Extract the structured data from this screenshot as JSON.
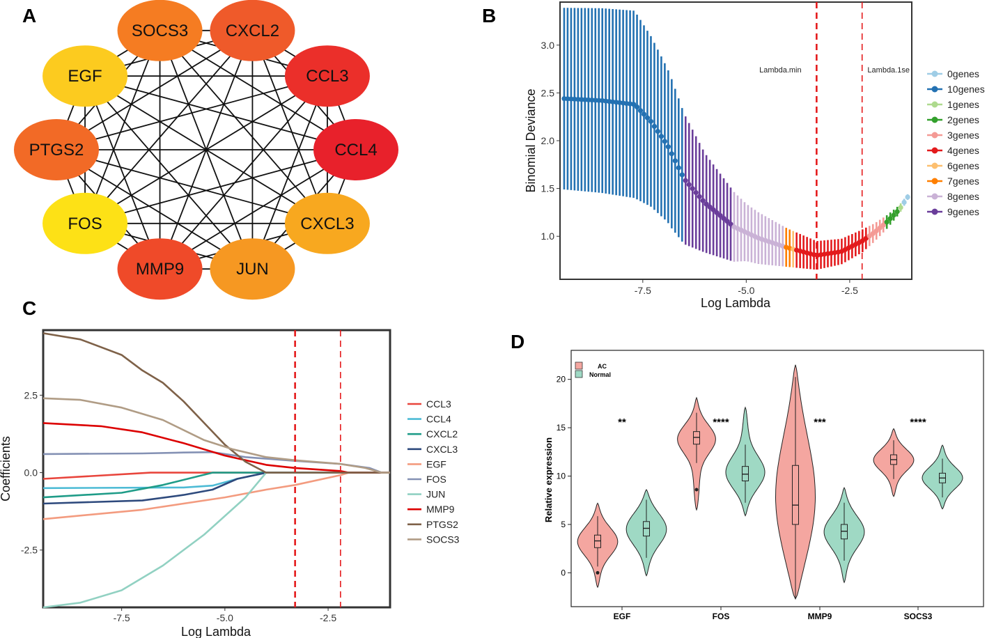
{
  "panels": {
    "a": "A",
    "b": "B",
    "c": "C",
    "d": "D"
  },
  "chart_data": [
    {
      "panel": "A",
      "type": "network",
      "nodes": [
        {
          "label": "SOCS3",
          "color": "#F57C22"
        },
        {
          "label": "CXCL2",
          "color": "#EF5A2A"
        },
        {
          "label": "CCL3",
          "color": "#EB2F2A"
        },
        {
          "label": "CCL4",
          "color": "#E8212B"
        },
        {
          "label": "CXCL3",
          "color": "#F8A81F"
        },
        {
          "label": "JUN",
          "color": "#F69822"
        },
        {
          "label": "MMP9",
          "color": "#EF4A29"
        },
        {
          "label": "FOS",
          "color": "#FDE116"
        },
        {
          "label": "PTGS2",
          "color": "#F26A26"
        },
        {
          "label": "EGF",
          "color": "#FCCB1F"
        }
      ]
    },
    {
      "panel": "B",
      "type": "scatter",
      "xlabel": "Log Lambda",
      "ylabel": "Binomial Deviance",
      "xlim": [
        -9.5,
        -1.0
      ],
      "ylim": [
        0.55,
        3.45
      ],
      "xticks": [
        -7.5,
        -5.0,
        -2.5
      ],
      "xtick_labels": [
        "-7.5",
        "-5.0",
        "-2.5"
      ],
      "yticks": [
        1.0,
        1.5,
        2.0,
        2.5,
        3.0
      ],
      "ytick_labels": [
        "1.0",
        "1.5",
        "2.0",
        "2.5",
        "3.0"
      ],
      "vlines": [
        {
          "x": -3.3,
          "label": "Lambda.min"
        },
        {
          "x": -2.2,
          "label": "Lambda.1se"
        }
      ],
      "legend": [
        {
          "label": "0genes",
          "color": "#9FCDE6"
        },
        {
          "label": "10genes",
          "color": "#2371B2"
        },
        {
          "label": "1genes",
          "color": "#AEDA8E"
        },
        {
          "label": "2genes",
          "color": "#33A02C"
        },
        {
          "label": "3genes",
          "color": "#F49A95"
        },
        {
          "label": "4genes",
          "color": "#E31A1C"
        },
        {
          "label": "6genes",
          "color": "#FDBF6F"
        },
        {
          "label": "7genes",
          "color": "#FF7F00"
        },
        {
          "label": "8genes",
          "color": "#CAB2D6"
        },
        {
          "label": "9genes",
          "color": "#6A3D9A"
        }
      ],
      "curve_points": [
        [
          -9.4,
          2.44
        ],
        [
          -8.5,
          2.42
        ],
        [
          -7.7,
          2.38
        ],
        [
          -7.3,
          2.2
        ],
        [
          -6.9,
          1.95
        ],
        [
          -6.5,
          1.6
        ],
        [
          -6.0,
          1.35
        ],
        [
          -5.3,
          1.1
        ],
        [
          -4.7,
          0.98
        ],
        [
          -4.0,
          0.88
        ],
        [
          -3.3,
          0.8
        ],
        [
          -2.7,
          0.84
        ],
        [
          -2.2,
          0.95
        ],
        [
          -1.9,
          1.04
        ],
        [
          -1.6,
          1.15
        ],
        [
          -1.3,
          1.28
        ],
        [
          -1.1,
          1.41
        ]
      ],
      "segments": [
        {
          "from": -9.4,
          "to": -6.5,
          "color": "#2371B2"
        },
        {
          "from": -6.5,
          "to": -5.3,
          "color": "#6A3D9A"
        },
        {
          "from": -5.3,
          "to": -4.1,
          "color": "#CAB2D6"
        },
        {
          "from": -4.1,
          "to": -3.95,
          "color": "#FF7F00"
        },
        {
          "from": -3.95,
          "to": -3.85,
          "color": "#FDBF6F"
        },
        {
          "from": -3.85,
          "to": -2.1,
          "color": "#E31A1C"
        },
        {
          "from": -2.1,
          "to": -1.65,
          "color": "#F49A95"
        },
        {
          "from": -1.65,
          "to": -1.35,
          "color": "#33A02C"
        },
        {
          "from": -1.35,
          "to": -1.2,
          "color": "#AEDA8E"
        },
        {
          "from": -1.2,
          "to": -1.1,
          "color": "#9FCDE6"
        }
      ],
      "error_halfwidth_points": [
        [
          -9.4,
          0.95
        ],
        [
          -7.7,
          0.98
        ],
        [
          -6.8,
          0.78
        ],
        [
          -6.0,
          0.52
        ],
        [
          -5.0,
          0.3
        ],
        [
          -4.0,
          0.2
        ],
        [
          -3.3,
          0.15
        ],
        [
          -2.2,
          0.12
        ],
        [
          -1.1,
          0.03
        ]
      ]
    },
    {
      "panel": "C",
      "type": "line",
      "xlabel": "Log Lambda",
      "ylabel": "Coefficients",
      "xlim": [
        -9.4,
        -1.0
      ],
      "ylim": [
        -4.35,
        4.6
      ],
      "xticks": [
        -7.5,
        -5.0,
        -2.5
      ],
      "xtick_labels": [
        "-7.5",
        "-5.0",
        "-2.5"
      ],
      "yticks": [
        -2.5,
        0.0,
        2.5
      ],
      "ytick_labels": [
        "-2.5",
        "0.0",
        "2.5"
      ],
      "vlines": [
        -3.3,
        -2.2
      ],
      "series": [
        {
          "name": "CCL3",
          "color": "#E8453C",
          "points": [
            [
              -9.4,
              -0.2
            ],
            [
              -6.8,
              0.0
            ],
            [
              -1.0,
              0.0
            ]
          ]
        },
        {
          "name": "CCL4",
          "color": "#4DBBD5",
          "points": [
            [
              -9.4,
              -0.5
            ],
            [
              -6.0,
              -0.48
            ],
            [
              -5.3,
              -0.42
            ],
            [
              -4.7,
              -0.2
            ],
            [
              -4.0,
              0.0
            ],
            [
              -1.0,
              0.0
            ]
          ]
        },
        {
          "name": "CXCL2",
          "color": "#1F9C88",
          "points": [
            [
              -9.4,
              -0.8
            ],
            [
              -7.5,
              -0.65
            ],
            [
              -6.5,
              -0.4
            ],
            [
              -5.3,
              0.0
            ],
            [
              -1.0,
              0.0
            ]
          ]
        },
        {
          "name": "CXCL3",
          "color": "#2E4A7D",
          "points": [
            [
              -9.4,
              -1.0
            ],
            [
              -7.0,
              -0.9
            ],
            [
              -6.0,
              -0.72
            ],
            [
              -5.3,
              -0.55
            ],
            [
              -4.7,
              -0.2
            ],
            [
              -4.0,
              0.0
            ],
            [
              -1.0,
              0.0
            ]
          ]
        },
        {
          "name": "EGF",
          "color": "#F39B7F",
          "points": [
            [
              -9.4,
              -1.5
            ],
            [
              -7.0,
              -1.2
            ],
            [
              -5.0,
              -0.8
            ],
            [
              -4.0,
              -0.55
            ],
            [
              -3.3,
              -0.4
            ],
            [
              -2.2,
              -0.08
            ],
            [
              -2.0,
              0.0
            ],
            [
              -1.0,
              0.0
            ]
          ]
        },
        {
          "name": "FOS",
          "color": "#8491B4",
          "points": [
            [
              -9.4,
              0.6
            ],
            [
              -7.0,
              0.62
            ],
            [
              -6.0,
              0.65
            ],
            [
              -5.3,
              0.66
            ],
            [
              -4.5,
              0.5
            ],
            [
              -3.3,
              0.38
            ],
            [
              -2.2,
              0.28
            ],
            [
              -1.5,
              0.15
            ],
            [
              -1.2,
              0.0
            ],
            [
              -1.0,
              0.0
            ]
          ]
        },
        {
          "name": "JUN",
          "color": "#91D1C2",
          "points": [
            [
              -9.4,
              -4.35
            ],
            [
              -8.5,
              -4.2
            ],
            [
              -7.5,
              -3.8
            ],
            [
              -6.5,
              -3.0
            ],
            [
              -5.5,
              -2.0
            ],
            [
              -4.5,
              -0.8
            ],
            [
              -4.0,
              0.0
            ],
            [
              -1.0,
              0.0
            ]
          ]
        },
        {
          "name": "MMP9",
          "color": "#DC0000",
          "points": [
            [
              -9.4,
              1.6
            ],
            [
              -8.0,
              1.5
            ],
            [
              -7.0,
              1.3
            ],
            [
              -6.0,
              0.95
            ],
            [
              -5.0,
              0.55
            ],
            [
              -4.0,
              0.25
            ],
            [
              -3.3,
              0.15
            ],
            [
              -2.2,
              0.05
            ],
            [
              -2.0,
              0.0
            ],
            [
              -1.0,
              0.0
            ]
          ]
        },
        {
          "name": "PTGS2",
          "color": "#7E6148",
          "points": [
            [
              -9.4,
              4.5
            ],
            [
              -8.5,
              4.3
            ],
            [
              -7.5,
              3.8
            ],
            [
              -7.0,
              3.3
            ],
            [
              -6.5,
              2.9
            ],
            [
              -6.0,
              2.3
            ],
            [
              -5.5,
              1.6
            ],
            [
              -5.0,
              0.9
            ],
            [
              -4.5,
              0.35
            ],
            [
              -4.0,
              0.0
            ],
            [
              -1.0,
              0.0
            ]
          ]
        },
        {
          "name": "SOCS3",
          "color": "#B09C85",
          "points": [
            [
              -9.4,
              2.4
            ],
            [
              -8.5,
              2.35
            ],
            [
              -7.5,
              2.1
            ],
            [
              -6.5,
              1.7
            ],
            [
              -5.5,
              1.05
            ],
            [
              -4.8,
              0.75
            ],
            [
              -4.0,
              0.5
            ],
            [
              -3.3,
              0.4
            ],
            [
              -2.2,
              0.28
            ],
            [
              -1.6,
              0.15
            ],
            [
              -1.2,
              0.0
            ],
            [
              -1.0,
              0.0
            ]
          ]
        }
      ]
    },
    {
      "panel": "D",
      "type": "violin",
      "ylabel": "Relative expression",
      "ylim": [
        -3.5,
        23.0
      ],
      "yticks": [
        0,
        5,
        10,
        15,
        20
      ],
      "ytick_labels": [
        "0",
        "5",
        "10",
        "15",
        "20"
      ],
      "categories": [
        "EGF",
        "FOS",
        "MMP9",
        "SOCS3"
      ],
      "legend": [
        {
          "label": "AC",
          "color": "#F4A6A0"
        },
        {
          "label": "Normal",
          "color": "#9FD9C4"
        }
      ],
      "significance": [
        "**",
        "****",
        "***",
        "****"
      ],
      "groups": [
        {
          "category": "EGF",
          "group": "AC",
          "min": -1.5,
          "q1": 2.6,
          "median": 3.3,
          "q3": 3.9,
          "max": 7.2,
          "mode": 3.3,
          "outliers": [
            0.0
          ]
        },
        {
          "category": "EGF",
          "group": "Normal",
          "min": -0.3,
          "q1": 3.8,
          "median": 4.6,
          "q3": 5.3,
          "max": 8.6,
          "mode": 4.6,
          "outliers": []
        },
        {
          "category": "FOS",
          "group": "AC",
          "min": 6.5,
          "q1": 13.3,
          "median": 14.0,
          "q3": 14.6,
          "max": 18.1,
          "mode": 14.0,
          "outliers": [
            8.6
          ]
        },
        {
          "category": "FOS",
          "group": "Normal",
          "min": 5.9,
          "q1": 9.5,
          "median": 10.2,
          "q3": 11.0,
          "max": 17.1,
          "mode": 10.2,
          "outliers": []
        },
        {
          "category": "MMP9",
          "group": "AC",
          "min": -2.7,
          "q1": 5.0,
          "median": 7.0,
          "q3": 11.1,
          "max": 21.5,
          "mode": 7.0,
          "outliers": []
        },
        {
          "category": "MMP9",
          "group": "Normal",
          "min": -1.0,
          "q1": 3.5,
          "median": 4.3,
          "q3": 5.0,
          "max": 8.8,
          "mode": 4.3,
          "outliers": []
        },
        {
          "category": "SOCS3",
          "group": "AC",
          "min": 7.9,
          "q1": 11.2,
          "median": 11.7,
          "q3": 12.2,
          "max": 14.9,
          "mode": 11.7,
          "outliers": []
        },
        {
          "category": "SOCS3",
          "group": "Normal",
          "min": 6.6,
          "q1": 9.3,
          "median": 9.8,
          "q3": 10.3,
          "max": 13.2,
          "mode": 9.8,
          "outliers": []
        }
      ]
    }
  ]
}
